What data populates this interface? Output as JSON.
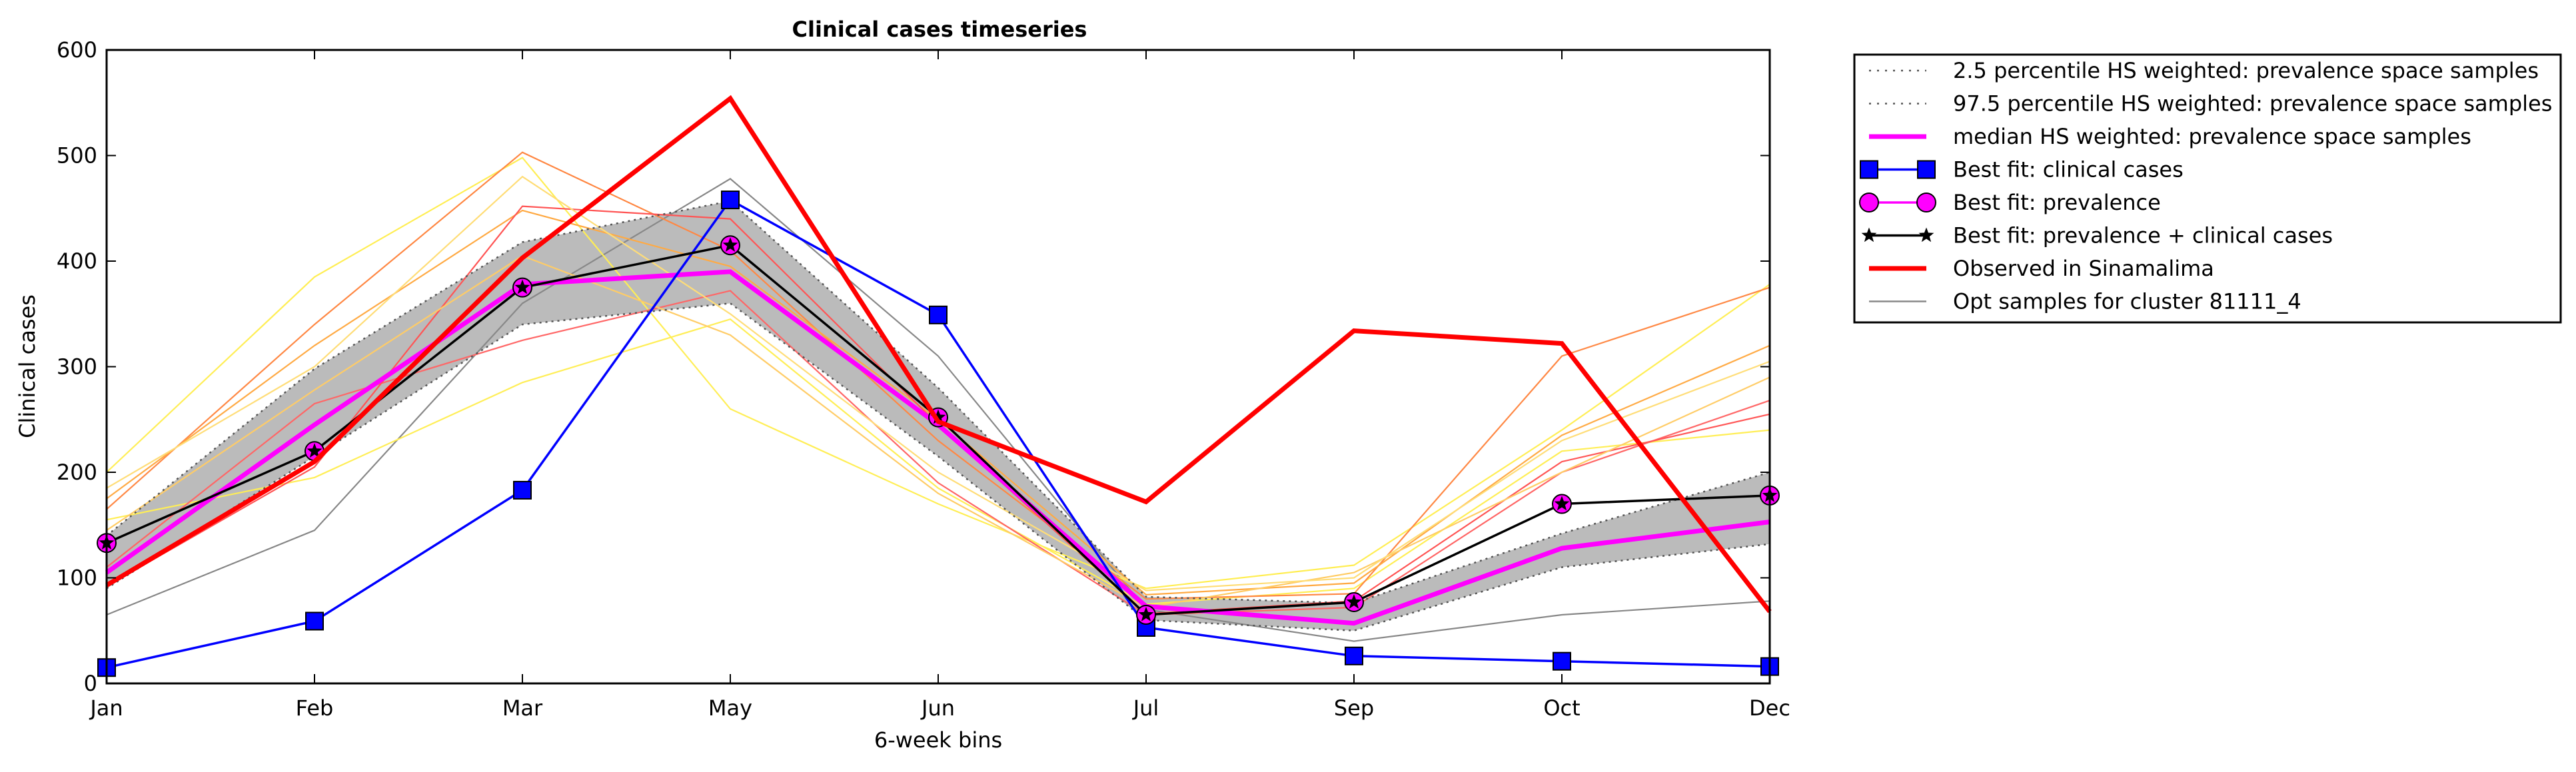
{
  "chart_data": {
    "type": "line",
    "title": "Clinical cases timeseries",
    "xlabel": "6-week bins",
    "ylabel": "Clinical cases",
    "categories": [
      "Jan",
      "Feb",
      "Mar",
      "May",
      "Jun",
      "Jul",
      "Sep",
      "Oct",
      "Dec"
    ],
    "yticks": [
      "0",
      "100",
      "200",
      "300",
      "400",
      "500",
      "600"
    ],
    "ylim": [
      0,
      600
    ],
    "grid": false,
    "legend_placement": "outside-top-right",
    "band": {
      "lower": [
        90,
        215,
        340,
        360,
        215,
        60,
        50,
        110,
        132
      ],
      "upper": [
        140,
        298,
        418,
        457,
        280,
        82,
        76,
        142,
        200
      ],
      "fill_color": "#bbbbbb"
    },
    "series": [
      {
        "name": "2.5 percentile HS weighted: prevalence space samples",
        "style": "dotted",
        "color": "#555555",
        "values": [
          90,
          215,
          340,
          360,
          215,
          60,
          50,
          110,
          132
        ]
      },
      {
        "name": "97.5 percentile HS weighted: prevalence space samples",
        "style": "dotted",
        "color": "#555555",
        "values": [
          140,
          298,
          418,
          457,
          280,
          82,
          76,
          142,
          200
        ]
      },
      {
        "name": "median HS weighted: prevalence space samples",
        "style": "thick",
        "color": "#ff00ff",
        "values": [
          105,
          245,
          378,
          390,
          245,
          73,
          57,
          128,
          153
        ]
      },
      {
        "name": "Best fit: clinical cases",
        "style": "square-markers",
        "color": "#0000ff",
        "values": [
          15,
          59,
          183,
          458,
          349,
          53,
          26,
          21,
          16
        ]
      },
      {
        "name": "Best fit: prevalence",
        "style": "circle-markers",
        "color": "#ff00ff",
        "values": [
          133,
          220,
          375,
          415,
          252,
          65,
          77,
          170,
          178
        ]
      },
      {
        "name": "Best fit: prevalence + clinical cases",
        "style": "star-markers",
        "color": "#000000",
        "values": [
          133,
          220,
          375,
          415,
          252,
          65,
          77,
          170,
          178
        ]
      },
      {
        "name": "Observed in Sinamalima",
        "style": "thick",
        "color": "#ff0000",
        "values": [
          93,
          210,
          403,
          554,
          248,
          172,
          334,
          322,
          68
        ]
      },
      {
        "name": "Opt samples for cluster 81111_4",
        "style": "thin",
        "color": "#888888",
        "values": [
          65,
          145,
          360,
          478,
          310,
          70,
          40,
          65,
          78
        ]
      }
    ],
    "samples": [
      {
        "color": "#888888",
        "values": [
          65,
          145,
          360,
          478,
          310,
          70,
          40,
          65,
          78
        ]
      },
      {
        "color": "#ffee55",
        "values": [
          200,
          385,
          498,
          260,
          170,
          90,
          112,
          240,
          378
        ]
      },
      {
        "color": "#ffee55",
        "values": [
          155,
          195,
          285,
          345,
          185,
          75,
          90,
          220,
          240
        ]
      },
      {
        "color": "#ff8844",
        "values": [
          165,
          340,
          503,
          410,
          230,
          80,
          85,
          310,
          375
        ]
      },
      {
        "color": "#ff6666",
        "values": [
          110,
          265,
          325,
          372,
          190,
          65,
          72,
          200,
          268
        ]
      },
      {
        "color": "#ffaa44",
        "values": [
          175,
          320,
          448,
          395,
          250,
          84,
          95,
          235,
          320
        ]
      },
      {
        "color": "#ff5555",
        "values": [
          92,
          205,
          452,
          440,
          245,
          66,
          78,
          210,
          255
        ]
      },
      {
        "color": "#ffcc66",
        "values": [
          145,
          278,
          405,
          330,
          180,
          72,
          105,
          200,
          290
        ]
      },
      {
        "color": "#ffdd77",
        "values": [
          185,
          300,
          480,
          350,
          200,
          88,
          100,
          230,
          305
        ]
      }
    ]
  }
}
